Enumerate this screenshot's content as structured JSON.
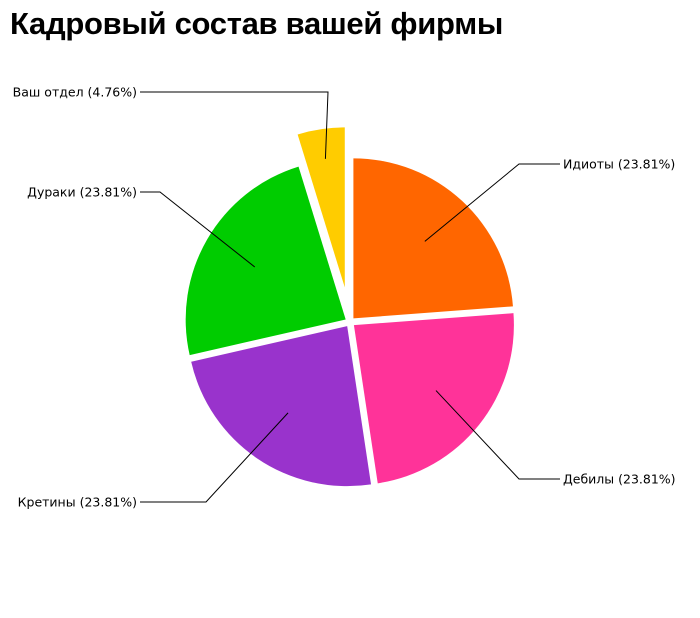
{
  "chart_data": {
    "type": "pie",
    "title": "Кадровый состав вашей фирмы",
    "slices": [
      {
        "label": "Идиоты (23.81%)",
        "value": 23.81,
        "color": "#ff6600"
      },
      {
        "label": "Дебилы (23.81%)",
        "value": 23.81,
        "color": "#ff3399"
      },
      {
        "label": "Кретины (23.81%)",
        "value": 23.81,
        "color": "#9933cc"
      },
      {
        "label": "Дураки (23.81%)",
        "value": 23.81,
        "color": "#00cc00"
      },
      {
        "label": "Ваш отдел (4.76%)",
        "value": 4.76,
        "color": "#ffcc00",
        "exploded": true
      }
    ],
    "legend": "none"
  }
}
